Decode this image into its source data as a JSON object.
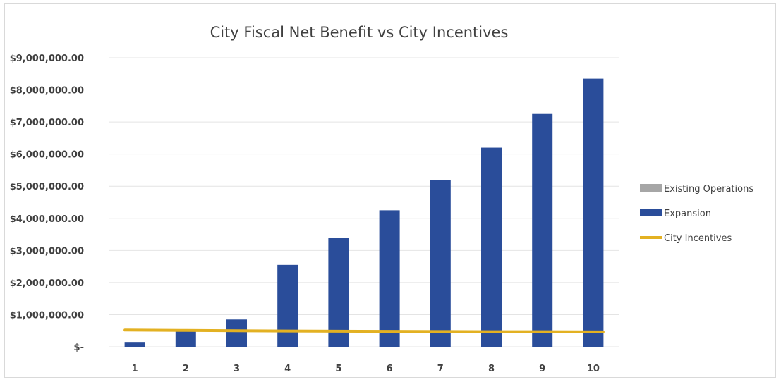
{
  "chart_data": {
    "type": "bar",
    "title": "City Fiscal Net Benefit vs City Incentives",
    "xlabel": "",
    "ylabel": "",
    "categories": [
      "1",
      "2",
      "3",
      "4",
      "5",
      "6",
      "7",
      "8",
      "9",
      "10"
    ],
    "ylim": [
      0,
      9000000
    ],
    "yticks": [
      0,
      1000000,
      2000000,
      3000000,
      4000000,
      5000000,
      6000000,
      7000000,
      8000000,
      9000000
    ],
    "ytick_labels": [
      "$-",
      "$1,000,000.00",
      "$2,000,000.00",
      "$3,000,000.00",
      "$4,000,000.00",
      "$5,000,000.00",
      "$6,000,000.00",
      "$7,000,000.00",
      "$8,000,000.00",
      "$9,000,000.00"
    ],
    "grid": true,
    "legend_position": "right",
    "series": [
      {
        "name": "Existing Operations",
        "kind": "bar",
        "color": "#a6a6a6",
        "values": [
          0,
          0,
          0,
          0,
          0,
          0,
          0,
          0,
          0,
          0
        ]
      },
      {
        "name": "Expansion",
        "kind": "bar",
        "color": "#2a4d9a",
        "values": [
          150000,
          500000,
          850000,
          2550000,
          3400000,
          4250000,
          5200000,
          6200000,
          7250000,
          8350000
        ]
      },
      {
        "name": "City Incentives",
        "kind": "line",
        "color": "#e3b122",
        "values": [
          520000,
          510000,
          500000,
          490000,
          485000,
          480000,
          475000,
          470000,
          468000,
          465000
        ]
      }
    ]
  }
}
